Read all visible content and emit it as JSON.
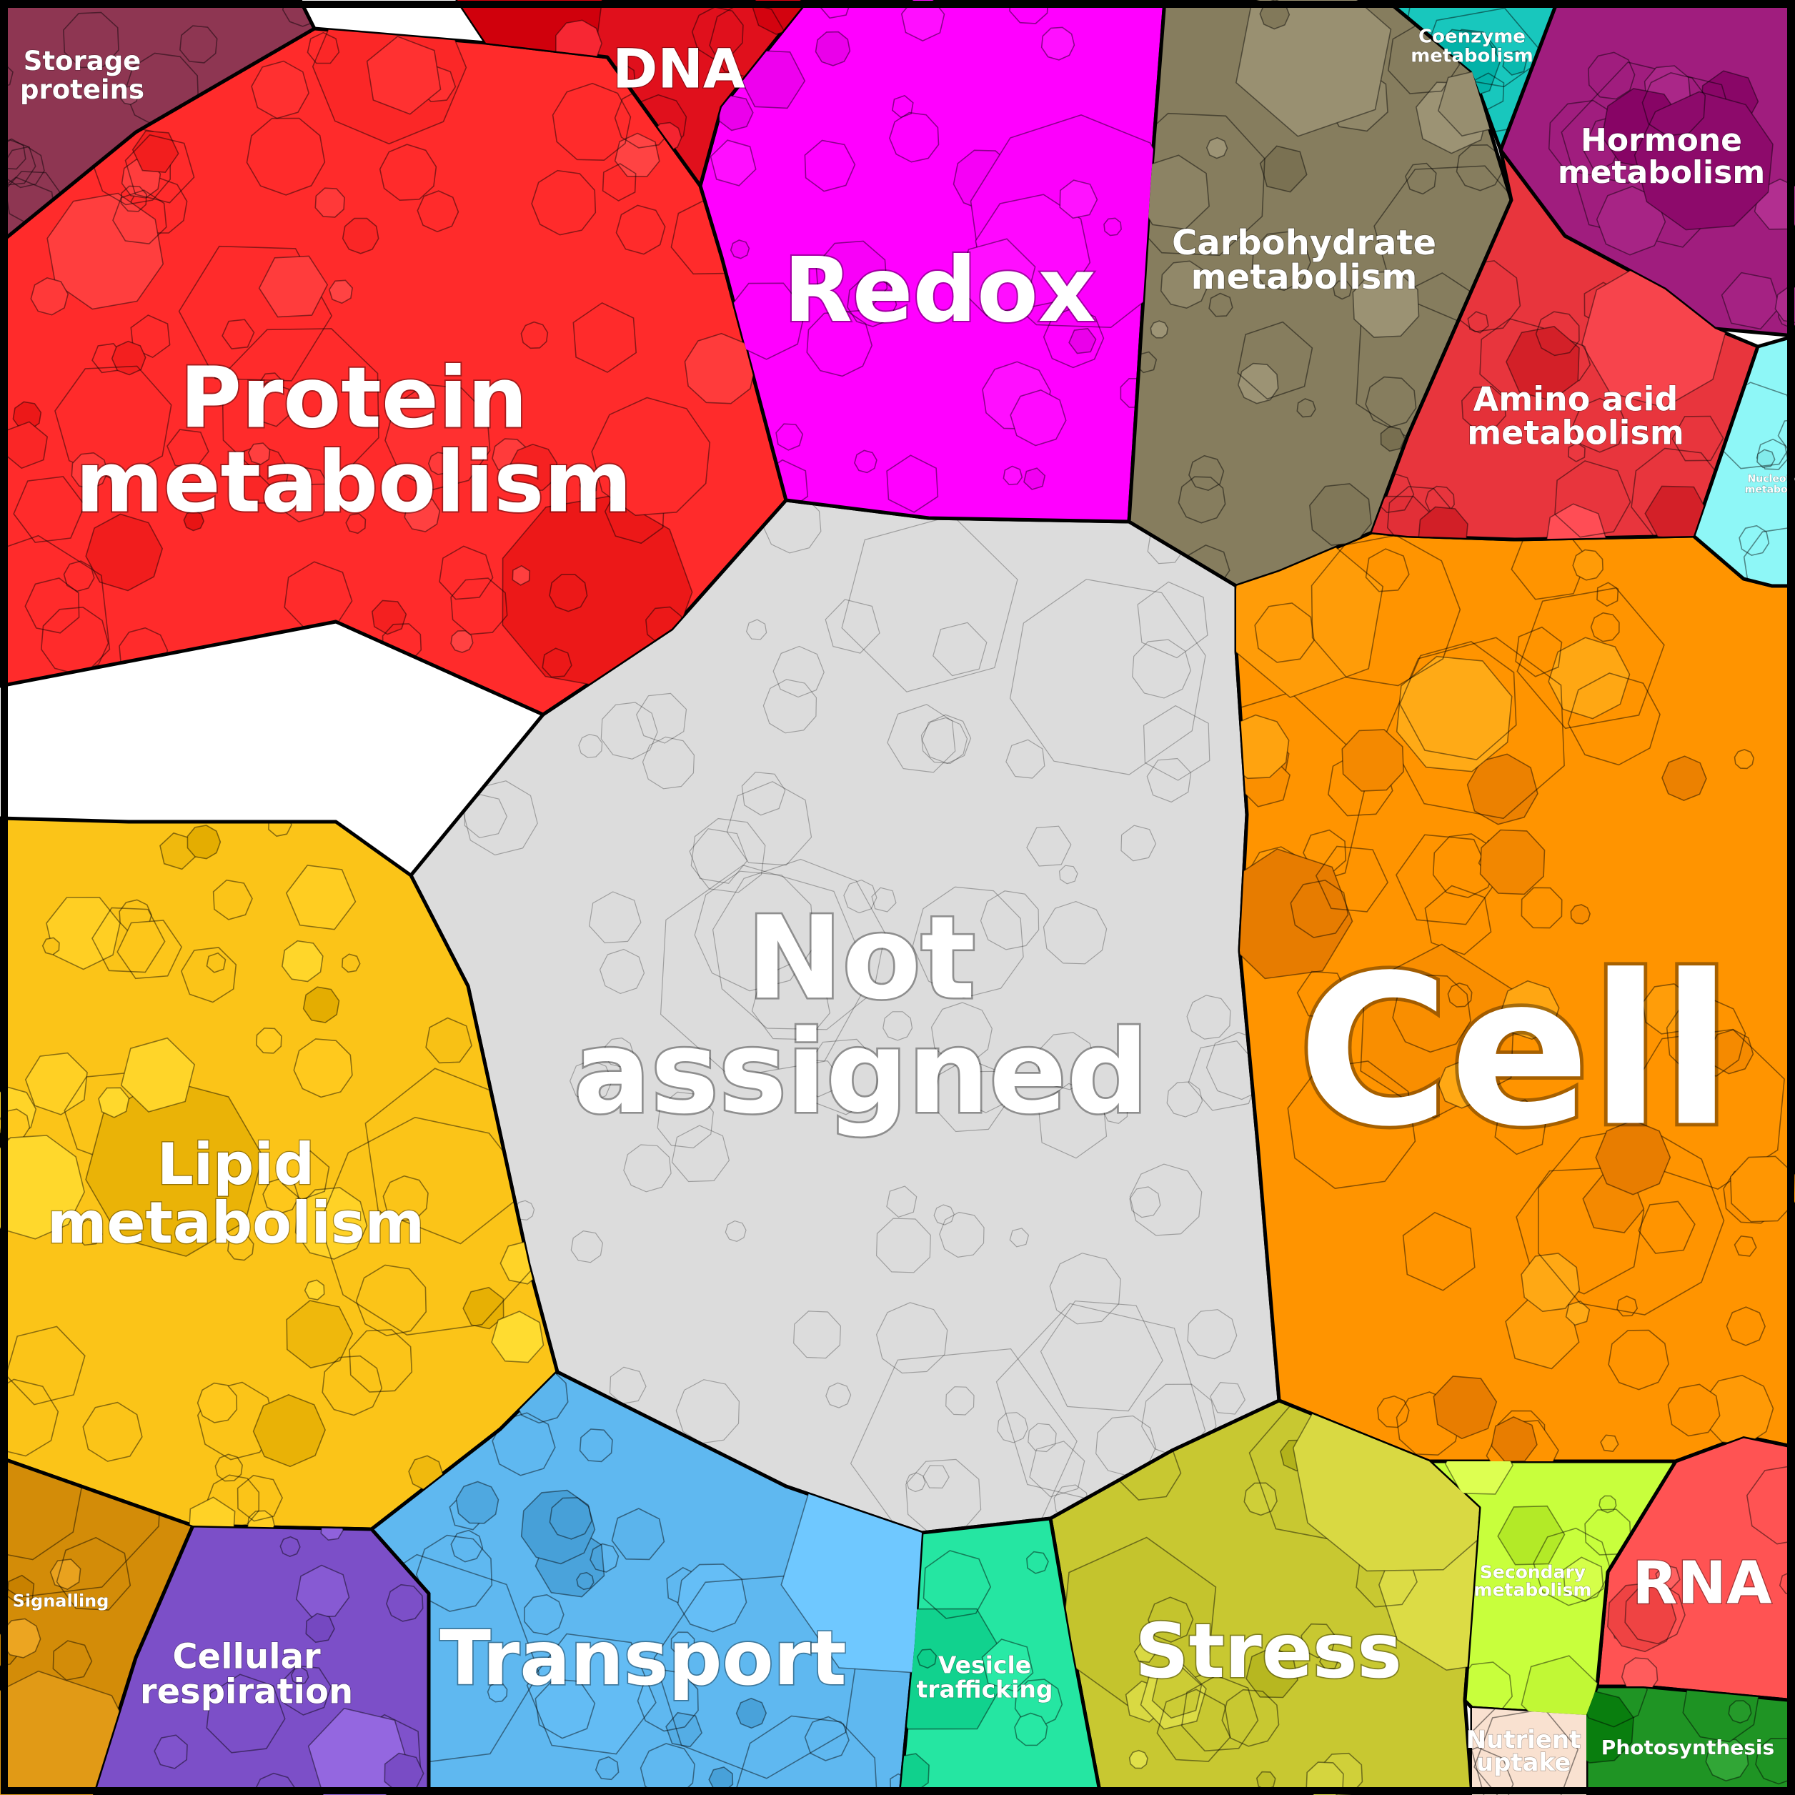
{
  "chart_data": {
    "type": "treemap",
    "layout": "voronoi",
    "title": "",
    "categories": [
      {
        "name": "Not assigned",
        "color": "#dcdcdc"
      },
      {
        "name": "Cell",
        "color": "#ff9400"
      },
      {
        "name": "Protein metabolism",
        "color": "#ff2b2b"
      },
      {
        "name": "Redox",
        "color": "#ff00ff"
      },
      {
        "name": "Lipid metabolism",
        "color": "#fbc418"
      },
      {
        "name": "Transport",
        "color": "#5fb8f0"
      },
      {
        "name": "Stress",
        "color": "#c8c831"
      },
      {
        "name": "Carbohydrate metabolism",
        "color": "#867d5e"
      },
      {
        "name": "Amino acid metabolism",
        "color": "#e8353d"
      },
      {
        "name": "Hormone metabolism",
        "color": "#a01d7e"
      },
      {
        "name": "RNA",
        "color": "#ff5353"
      },
      {
        "name": "DNA",
        "color": "#e0101c"
      },
      {
        "name": "Storage proteins",
        "color": "#8e3652"
      },
      {
        "name": "Coenzyme metabolism",
        "color": "#18c7bd"
      },
      {
        "name": "Nucleotide metabolism",
        "color": "#8ef7f7"
      },
      {
        "name": "Signalling",
        "color": "#d38c08"
      },
      {
        "name": "Cellular respiration",
        "color": "#7c4fc8"
      },
      {
        "name": "Vesicle trafficking",
        "color": "#25e6a2"
      },
      {
        "name": "Secondary metabolism",
        "color": "#c8ff3c"
      },
      {
        "name": "Photosynthesis",
        "color": "#1f9424"
      },
      {
        "name": "Nutrient uptake",
        "color": "#ffe7d6"
      }
    ]
  }
}
